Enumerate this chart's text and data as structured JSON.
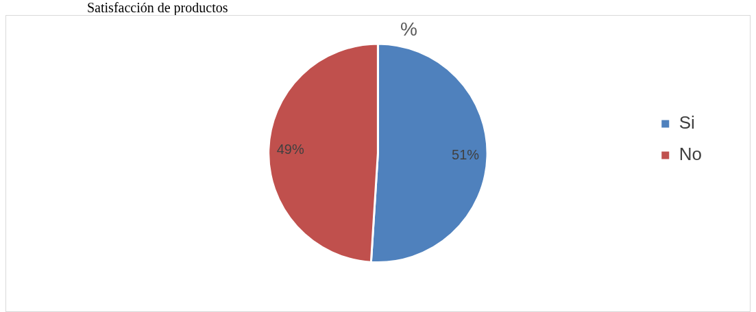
{
  "chart_data": {
    "type": "pie",
    "title": "%",
    "annotations": [
      "Satisfacción de productos"
    ],
    "categories": [
      "Si",
      "No"
    ],
    "values": [
      51,
      49
    ],
    "colors": [
      "#4f81bd",
      "#c0504d"
    ],
    "value_labels": [
      "51%",
      "49%"
    ],
    "legend": "right"
  }
}
